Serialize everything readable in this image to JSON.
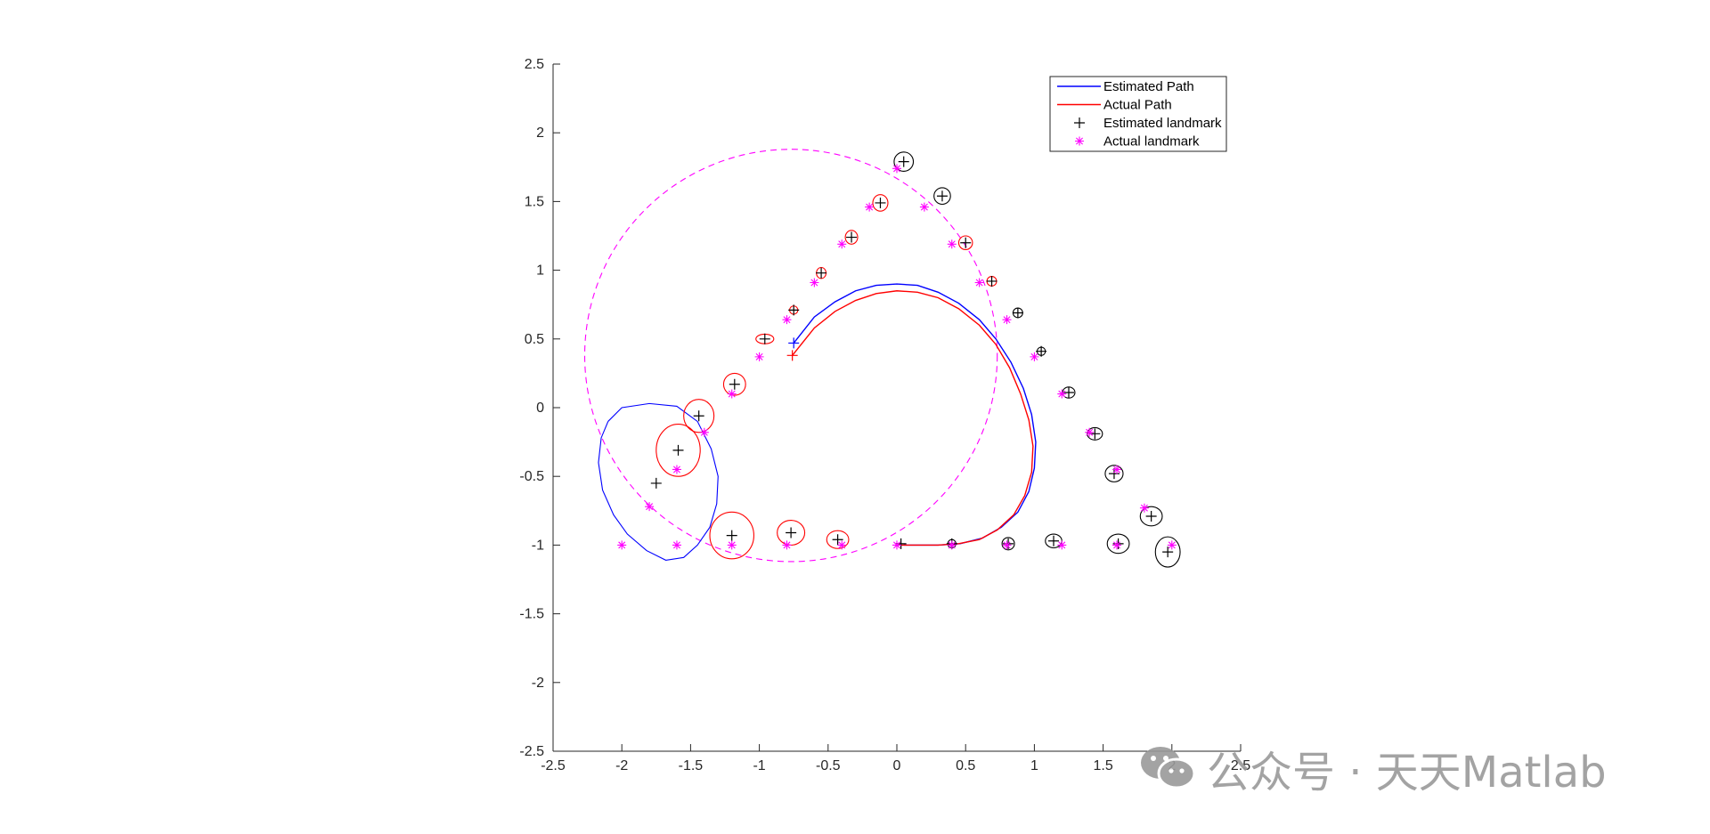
{
  "chart_data": {
    "type": "line",
    "xlim": [
      -2.5,
      2.5
    ],
    "ylim": [
      -2.5,
      2.5
    ],
    "xticks": [
      -2.5,
      -2,
      -1.5,
      -1,
      -0.5,
      0,
      0.5,
      1,
      1.5,
      2,
      2.5
    ],
    "yticks": [
      -2.5,
      -2,
      -1.5,
      -1,
      -0.5,
      0,
      0.5,
      1,
      1.5,
      2,
      2.5
    ],
    "xtick_labels": [
      "-2.5",
      "-2",
      "-1.5",
      "-1",
      "-0.5",
      "0",
      "0.5",
      "1",
      "1.5",
      "2",
      "2.5"
    ],
    "ytick_labels": [
      "-2.5",
      "-2",
      "-1.5",
      "-1",
      "-0.5",
      "0",
      "0.5",
      "1",
      "1.5",
      "2",
      "2.5"
    ],
    "grid": false,
    "legend_position": "top-right",
    "legend": [
      {
        "label": "Estimated Path",
        "kind": "line",
        "color": "#0000ff"
      },
      {
        "label": "Actual Path",
        "kind": "line",
        "color": "#ff0000"
      },
      {
        "label": "Estimated landmark",
        "kind": "plus",
        "color": "#000000"
      },
      {
        "label": "Actual landmark",
        "kind": "star",
        "color": "#ff00ff"
      }
    ],
    "series": [
      {
        "name": "Estimated Path",
        "color": "#0000ff",
        "style": "line",
        "x": [
          -0.75,
          -0.6,
          -0.45,
          -0.3,
          -0.15,
          0.0,
          0.15,
          0.3,
          0.45,
          0.6,
          0.72,
          0.83,
          0.92,
          0.98,
          1.01,
          1.0,
          0.96,
          0.88,
          0.76,
          0.62,
          0.46,
          0.3,
          0.15,
          0.05
        ],
        "y": [
          0.47,
          0.66,
          0.77,
          0.85,
          0.89,
          0.9,
          0.89,
          0.84,
          0.76,
          0.64,
          0.5,
          0.33,
          0.14,
          -0.05,
          -0.25,
          -0.44,
          -0.61,
          -0.76,
          -0.87,
          -0.95,
          -0.99,
          -1.0,
          -1.0,
          -1.0
        ]
      },
      {
        "name": "Actual Path",
        "color": "#ff0000",
        "style": "line",
        "x": [
          -0.76,
          -0.6,
          -0.45,
          -0.3,
          -0.15,
          0.0,
          0.15,
          0.3,
          0.45,
          0.6,
          0.72,
          0.82,
          0.9,
          0.96,
          0.99,
          0.98,
          0.93,
          0.85,
          0.73,
          0.6,
          0.45,
          0.3,
          0.15,
          0.0
        ],
        "y": [
          0.38,
          0.58,
          0.7,
          0.78,
          0.83,
          0.85,
          0.84,
          0.8,
          0.72,
          0.6,
          0.46,
          0.29,
          0.1,
          -0.09,
          -0.28,
          -0.47,
          -0.64,
          -0.78,
          -0.89,
          -0.96,
          -0.99,
          -1.0,
          -1.0,
          -1.0
        ]
      },
      {
        "name": "Estimated landmark",
        "color": "#000000",
        "style": "plus",
        "x": [
          0.05,
          0.33,
          0.5,
          0.69,
          0.88,
          1.05,
          1.25,
          1.44,
          1.58,
          1.85,
          1.97,
          1.61,
          1.14,
          0.81,
          0.4,
          0.03,
          -0.43,
          -0.77,
          -1.2,
          -1.75,
          -1.59,
          -1.44,
          -1.18,
          -0.96,
          -0.75,
          -0.55,
          -0.33,
          -0.12
        ],
        "y": [
          1.79,
          1.54,
          1.2,
          0.92,
          0.69,
          0.41,
          0.11,
          -0.19,
          -0.48,
          -0.79,
          -1.05,
          -0.99,
          -0.97,
          -0.99,
          -0.99,
          -0.99,
          -0.96,
          -0.91,
          -0.93,
          -0.55,
          -0.31,
          -0.06,
          0.17,
          0.5,
          0.71,
          0.98,
          1.24,
          1.49
        ]
      },
      {
        "name": "Actual landmark",
        "color": "#ff00ff",
        "style": "star",
        "x": [
          0.0,
          0.2,
          0.4,
          0.6,
          0.8,
          1.0,
          1.2,
          1.4,
          1.6,
          1.8,
          2.0,
          1.6,
          1.2,
          0.8,
          0.4,
          0.0,
          -0.4,
          -0.8,
          -1.2,
          -1.6,
          -2.0,
          -1.8,
          -1.6,
          -1.4,
          -1.2,
          -1.0,
          -0.8,
          -0.6,
          -0.4,
          -0.2
        ],
        "y": [
          1.74,
          1.46,
          1.19,
          0.91,
          0.64,
          0.37,
          0.1,
          -0.18,
          -0.45,
          -0.73,
          -1.0,
          -1.0,
          -1.0,
          -1.0,
          -1.0,
          -1.0,
          -1.0,
          -1.0,
          -1.0,
          -1.0,
          -1.0,
          -0.72,
          -0.45,
          -0.18,
          0.1,
          0.37,
          0.64,
          0.91,
          1.19,
          1.46
        ]
      }
    ],
    "covariance_ellipses": [
      {
        "cx": 0.05,
        "cy": 1.79,
        "rx": 0.07,
        "ry": 0.07,
        "angle": 0,
        "color": "#000000"
      },
      {
        "cx": 0.33,
        "cy": 1.54,
        "rx": 0.06,
        "ry": 0.06,
        "angle": 0,
        "color": "#000000"
      },
      {
        "cx": 0.5,
        "cy": 1.2,
        "rx": 0.05,
        "ry": 0.05,
        "angle": 0,
        "color": "#ff0000"
      },
      {
        "cx": 0.69,
        "cy": 0.92,
        "rx": 0.035,
        "ry": 0.035,
        "angle": 0,
        "color": "#ff0000"
      },
      {
        "cx": 0.88,
        "cy": 0.69,
        "rx": 0.035,
        "ry": 0.035,
        "angle": 0,
        "color": "#000000"
      },
      {
        "cx": 1.05,
        "cy": 0.41,
        "rx": 0.03,
        "ry": 0.03,
        "angle": 0,
        "color": "#000000"
      },
      {
        "cx": 1.25,
        "cy": 0.11,
        "rx": 0.045,
        "ry": 0.04,
        "angle": 0,
        "color": "#000000"
      },
      {
        "cx": 1.44,
        "cy": -0.19,
        "rx": 0.055,
        "ry": 0.045,
        "angle": 0,
        "color": "#000000"
      },
      {
        "cx": 1.58,
        "cy": -0.48,
        "rx": 0.065,
        "ry": 0.06,
        "angle": 0,
        "color": "#000000"
      },
      {
        "cx": 1.85,
        "cy": -0.79,
        "rx": 0.08,
        "ry": 0.07,
        "angle": 0,
        "color": "#000000"
      },
      {
        "cx": 1.97,
        "cy": -1.05,
        "rx": 0.09,
        "ry": 0.11,
        "angle": 0,
        "color": "#000000"
      },
      {
        "cx": 1.61,
        "cy": -0.99,
        "rx": 0.08,
        "ry": 0.07,
        "angle": 0,
        "color": "#000000"
      },
      {
        "cx": 1.14,
        "cy": -0.97,
        "rx": 0.06,
        "ry": 0.05,
        "angle": 0,
        "color": "#000000"
      },
      {
        "cx": 0.81,
        "cy": -0.99,
        "rx": 0.045,
        "ry": 0.045,
        "angle": 0,
        "color": "#000000"
      },
      {
        "cx": 0.4,
        "cy": -0.99,
        "rx": 0.03,
        "ry": 0.03,
        "angle": 0,
        "color": "#000000"
      },
      {
        "cx": -0.43,
        "cy": -0.96,
        "rx": 0.08,
        "ry": 0.065,
        "angle": 0,
        "color": "#ff0000"
      },
      {
        "cx": -0.77,
        "cy": -0.91,
        "rx": 0.1,
        "ry": 0.09,
        "angle": 0,
        "color": "#ff0000"
      },
      {
        "cx": -1.2,
        "cy": -0.93,
        "rx": 0.16,
        "ry": 0.17,
        "angle": 0,
        "color": "#ff0000"
      },
      {
        "cx": -1.59,
        "cy": -0.31,
        "rx": 0.16,
        "ry": 0.19,
        "angle": 0,
        "color": "#ff0000"
      },
      {
        "cx": -1.44,
        "cy": -0.06,
        "rx": 0.11,
        "ry": 0.12,
        "angle": 0,
        "color": "#ff0000"
      },
      {
        "cx": -1.18,
        "cy": 0.17,
        "rx": 0.08,
        "ry": 0.08,
        "angle": 0,
        "color": "#ff0000"
      },
      {
        "cx": -0.96,
        "cy": 0.5,
        "rx": 0.065,
        "ry": 0.035,
        "angle": 0,
        "color": "#ff0000"
      },
      {
        "cx": -0.75,
        "cy": 0.71,
        "rx": 0.03,
        "ry": 0.03,
        "angle": 0,
        "color": "#ff0000"
      },
      {
        "cx": -0.55,
        "cy": 0.98,
        "rx": 0.035,
        "ry": 0.04,
        "angle": 0,
        "color": "#ff0000"
      },
      {
        "cx": -0.33,
        "cy": 1.24,
        "rx": 0.045,
        "ry": 0.05,
        "angle": 0,
        "color": "#ff0000"
      },
      {
        "cx": -0.12,
        "cy": 1.49,
        "rx": 0.055,
        "ry": 0.06,
        "angle": 0,
        "color": "#ff0000"
      }
    ],
    "dashed_circle": {
      "cx": -0.77,
      "cy": 0.38,
      "r": 1.5,
      "color": "#ff00ff"
    },
    "blue_polygon": {
      "color": "#0000ff",
      "x": [
        -2.1,
        -2.15,
        -2.17,
        -2.14,
        -2.06,
        -1.96,
        -1.82,
        -1.68,
        -1.55,
        -1.45,
        -1.36,
        -1.31,
        -1.3,
        -1.35,
        -1.45,
        -1.6,
        -1.8,
        -2.0,
        -2.1
      ],
      "y": [
        -0.1,
        -0.22,
        -0.4,
        -0.6,
        -0.78,
        -0.92,
        -1.04,
        -1.11,
        -1.09,
        -1.0,
        -0.87,
        -0.7,
        -0.5,
        -0.3,
        -0.1,
        0.01,
        0.03,
        0.0,
        -0.1
      ]
    }
  },
  "watermark": {
    "text": "公众号 · 天天Matlab",
    "icon": "wechat-icon"
  }
}
